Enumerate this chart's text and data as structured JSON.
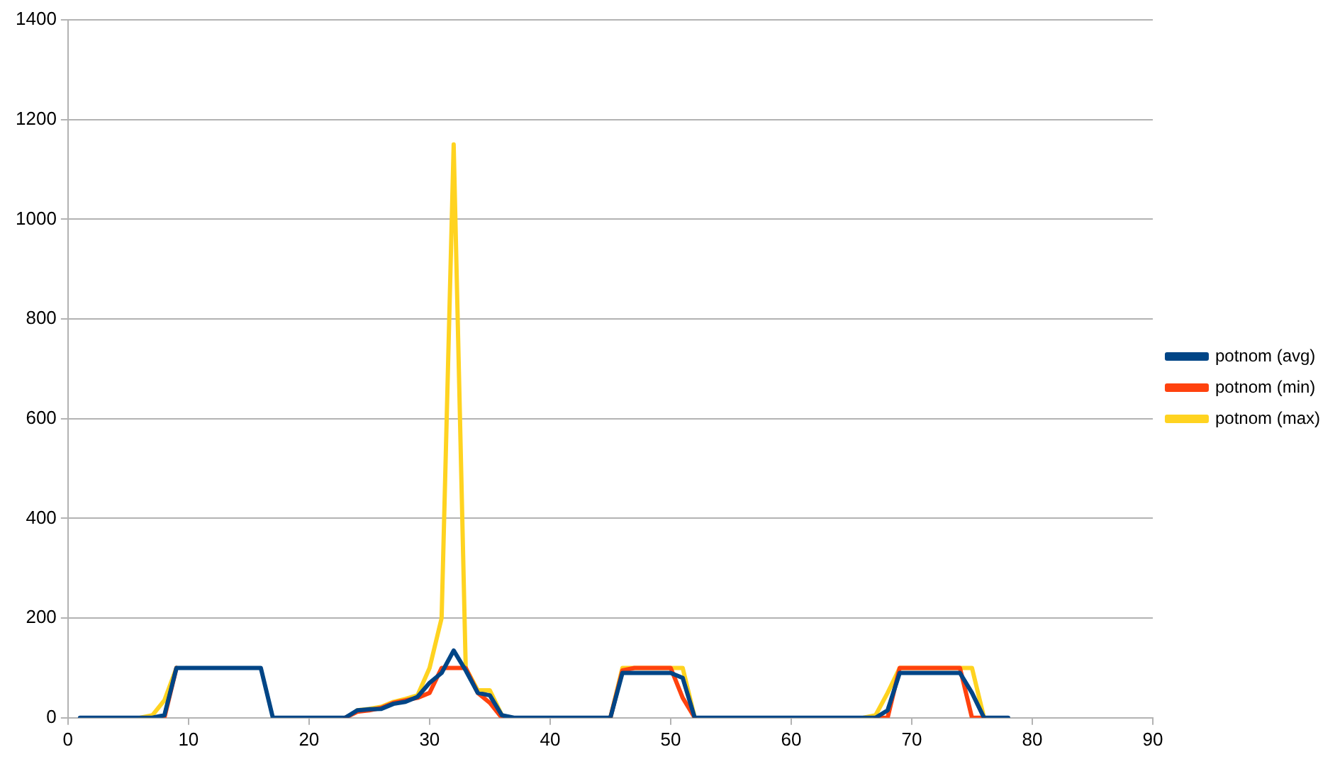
{
  "chart_data": {
    "type": "line",
    "x": [
      1,
      2,
      3,
      4,
      5,
      6,
      7,
      8,
      9,
      10,
      11,
      12,
      13,
      14,
      15,
      16,
      17,
      18,
      19,
      20,
      21,
      22,
      23,
      24,
      25,
      26,
      27,
      28,
      29,
      30,
      31,
      32,
      33,
      34,
      35,
      36,
      37,
      38,
      39,
      40,
      41,
      42,
      43,
      44,
      45,
      46,
      47,
      48,
      49,
      50,
      51,
      52,
      53,
      54,
      55,
      56,
      57,
      58,
      59,
      60,
      61,
      62,
      63,
      64,
      65,
      66,
      67,
      68,
      69,
      70,
      71,
      72,
      73,
      74,
      75,
      76,
      77,
      78
    ],
    "series": [
      {
        "name": "potnom (avg)",
        "color": "#004586",
        "values": [
          0,
          0,
          0,
          0,
          0,
          0,
          0,
          5,
          100,
          100,
          100,
          100,
          100,
          100,
          100,
          100,
          0,
          0,
          0,
          0,
          0,
          0,
          0,
          15,
          17,
          18,
          28,
          32,
          42,
          70,
          90,
          135,
          95,
          50,
          45,
          5,
          0,
          0,
          0,
          0,
          0,
          0,
          0,
          0,
          0,
          90,
          90,
          90,
          90,
          90,
          80,
          0,
          0,
          0,
          0,
          0,
          0,
          0,
          0,
          0,
          0,
          0,
          0,
          0,
          0,
          0,
          0,
          15,
          90,
          90,
          90,
          90,
          90,
          90,
          50,
          0,
          0,
          0
        ]
      },
      {
        "name": "potnom (min)",
        "color": "#ff420e",
        "values": [
          null,
          null,
          null,
          null,
          null,
          null,
          null,
          0,
          100,
          null,
          null,
          null,
          null,
          null,
          null,
          null,
          null,
          null,
          null,
          null,
          null,
          null,
          0,
          12,
          15,
          20,
          30,
          35,
          40,
          50,
          100,
          100,
          100,
          50,
          30,
          0,
          null,
          null,
          null,
          null,
          null,
          null,
          null,
          null,
          0,
          95,
          100,
          100,
          100,
          100,
          40,
          0,
          null,
          null,
          null,
          null,
          null,
          null,
          null,
          null,
          null,
          null,
          null,
          null,
          null,
          null,
          0,
          0,
          100,
          100,
          100,
          100,
          100,
          100,
          0,
          0,
          null,
          null
        ]
      },
      {
        "name": "potnom (max)",
        "color": "#ffd320",
        "values": [
          null,
          null,
          null,
          null,
          null,
          0,
          5,
          35,
          100,
          null,
          null,
          null,
          null,
          null,
          null,
          null,
          null,
          null,
          null,
          null,
          null,
          null,
          null,
          15,
          18,
          22,
          32,
          38,
          45,
          100,
          200,
          1150,
          100,
          55,
          55,
          5,
          null,
          null,
          null,
          null,
          null,
          null,
          null,
          null,
          0,
          100,
          100,
          100,
          100,
          100,
          100,
          0,
          null,
          null,
          null,
          null,
          null,
          null,
          null,
          null,
          null,
          null,
          null,
          null,
          null,
          0,
          5,
          50,
          100,
          100,
          100,
          100,
          100,
          100,
          100,
          0,
          null,
          null
        ]
      }
    ],
    "xlim": [
      0,
      90
    ],
    "xticks": [
      0,
      10,
      20,
      30,
      40,
      50,
      60,
      70,
      80,
      90
    ],
    "ylim": [
      0,
      1400
    ],
    "yticks": [
      0,
      200,
      400,
      600,
      800,
      1000,
      1200,
      1400
    ],
    "grid": "y",
    "legend": "right",
    "marker": "none",
    "line_style": "solid"
  }
}
